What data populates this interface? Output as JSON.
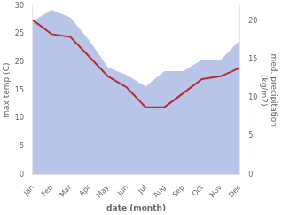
{
  "chart_data": {
    "type": "line",
    "categories": [
      "Jan",
      "Feb",
      "Mar",
      "Apr",
      "May",
      "Jun",
      "Jul",
      "Aug",
      "Sep",
      "Oct",
      "Nov",
      "Dec"
    ],
    "series": [
      {
        "type": "area",
        "color": "#b8c4e8",
        "axis": "y2",
        "values": [
          20.0,
          21.5,
          20.5,
          17.5,
          14.0,
          13.0,
          11.5,
          13.5,
          13.5,
          15.0,
          15.0,
          17.5
        ]
      },
      {
        "type": "line",
        "color": "#b03030",
        "values": [
          27.5,
          25.0,
          24.5,
          21.0,
          17.5,
          15.5,
          12.0,
          12.0,
          14.5,
          17.0,
          17.5,
          19.0
        ]
      }
    ],
    "xlabel": "date (month)",
    "ylabel": "max temp (C)",
    "y2label": "med. precipitation\n(kg/m2)",
    "ylim": [
      0,
      30
    ],
    "yticks": [
      0,
      5,
      10,
      15,
      20,
      25,
      30
    ],
    "y2lim": [
      0,
      22
    ],
    "y2ticks": [
      0,
      5,
      10,
      15,
      20
    ],
    "grid": false
  }
}
